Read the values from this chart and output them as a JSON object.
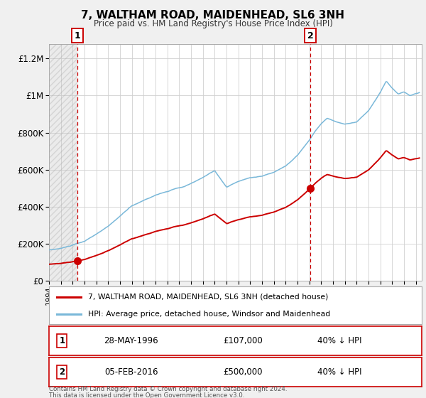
{
  "title": "7, WALTHAM ROAD, MAIDENHEAD, SL6 3NH",
  "subtitle": "Price paid vs. HM Land Registry's House Price Index (HPI)",
  "hpi_label": "HPI: Average price, detached house, Windsor and Maidenhead",
  "property_label": "7, WALTHAM ROAD, MAIDENHEAD, SL6 3NH (detached house)",
  "hpi_color": "#7ab8d9",
  "property_color": "#cc0000",
  "vline_color": "#cc0000",
  "marker1_date_x": 1996.41,
  "marker1_y": 107000,
  "marker2_date_x": 2016.09,
  "marker2_y": 500000,
  "marker1_text": "28-MAY-1996",
  "marker1_price": "£107,000",
  "marker1_hpi": "40% ↓ HPI",
  "marker2_text": "05-FEB-2016",
  "marker2_price": "£500,000",
  "marker2_hpi": "40% ↓ HPI",
  "xmin": 1994.0,
  "xmax": 2025.5,
  "ymin": 0,
  "ymax": 1280000,
  "yticks": [
    0,
    200000,
    400000,
    600000,
    800000,
    1000000,
    1200000
  ],
  "ytick_labels": [
    "£0",
    "£200K",
    "£400K",
    "£600K",
    "£800K",
    "£1M",
    "£1.2M"
  ],
  "hatch_xmin": 1994.0,
  "hatch_xmax": 1996.41,
  "footer1": "Contains HM Land Registry data © Crown copyright and database right 2024.",
  "footer2": "This data is licensed under the Open Government Licence v3.0.",
  "bg_color": "#f0f0f0",
  "plot_bg": "#ffffff",
  "grid_color": "#d0d0d0"
}
